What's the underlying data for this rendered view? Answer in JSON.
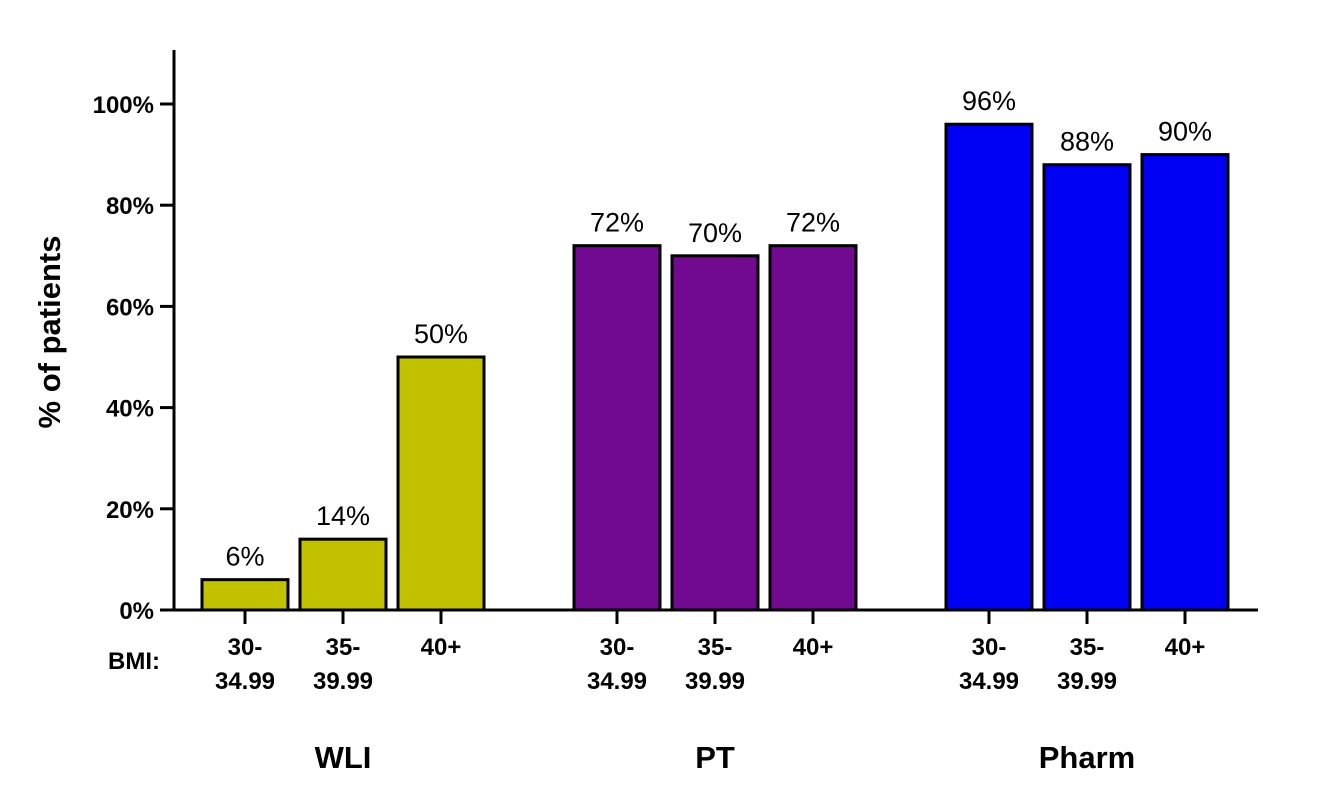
{
  "chart_data": {
    "type": "bar",
    "title": "",
    "xlabel": "",
    "ylabel": "% of patients",
    "ylim": [
      0,
      110
    ],
    "yticks": [
      0,
      20,
      40,
      60,
      80,
      100
    ],
    "ytick_labels": [
      "0%",
      "20%",
      "40%",
      "60%",
      "80%",
      "100%"
    ],
    "category_prefix": "BMI:",
    "groups": [
      {
        "name": "WLI",
        "color": "#c2c100",
        "bars": [
          {
            "category": [
              "30-",
              "34.99"
            ],
            "value": 6,
            "label": "6%"
          },
          {
            "category": [
              "35-",
              "39.99"
            ],
            "value": 14,
            "label": "14%"
          },
          {
            "category": [
              "40+"
            ],
            "value": 50,
            "label": "50%"
          }
        ]
      },
      {
        "name": "PT",
        "color": "#720a91",
        "bars": [
          {
            "category": [
              "30-",
              "34.99"
            ],
            "value": 72,
            "label": "72%"
          },
          {
            "category": [
              "35-",
              "39.99"
            ],
            "value": 70,
            "label": "70%"
          },
          {
            "category": [
              "40+"
            ],
            "value": 72,
            "label": "72%"
          }
        ]
      },
      {
        "name": "Pharm",
        "color": "#0000f5",
        "bars": [
          {
            "category": [
              "30-",
              "34.99"
            ],
            "value": 96,
            "label": "96%"
          },
          {
            "category": [
              "35-",
              "39.99"
            ],
            "value": 88,
            "label": "88%"
          },
          {
            "category": [
              "40+"
            ],
            "value": 90,
            "label": "90%"
          }
        ]
      }
    ],
    "grid": false,
    "legend": "none"
  }
}
